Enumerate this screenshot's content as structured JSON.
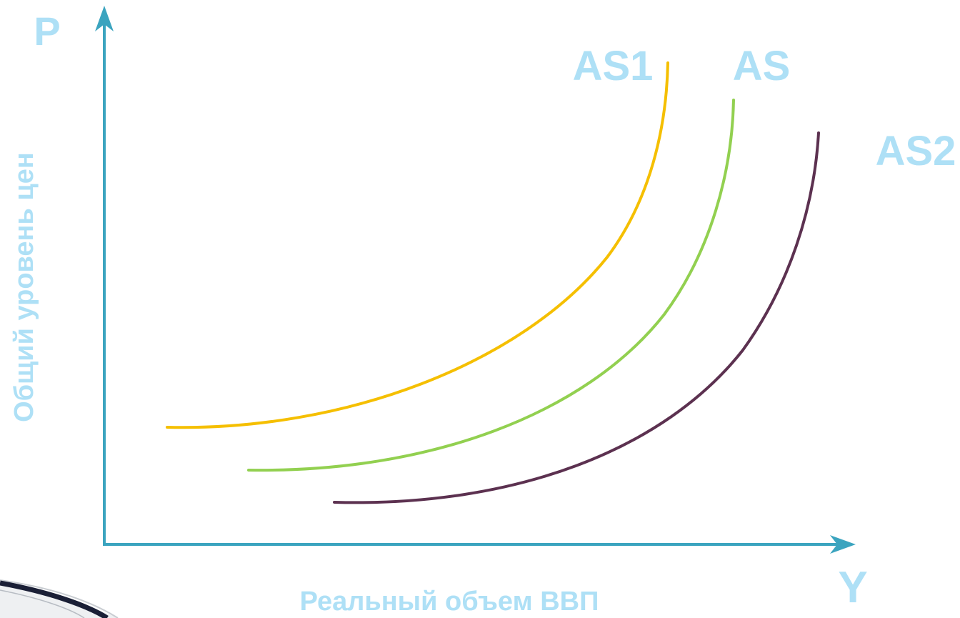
{
  "labels": {
    "y_axis_letter": "P",
    "x_axis_letter": "Y",
    "y_axis_title": "Общий уровень цен",
    "x_axis_title": "Реальный объем ВВП"
  },
  "curves": [
    {
      "name": "AS1",
      "color": "#f5bf00"
    },
    {
      "name": "AS",
      "color": "#92d050"
    },
    {
      "name": "AS2",
      "color": "#5c3150"
    }
  ],
  "colors": {
    "axis": "#3ba4bf",
    "label": "#aee0f6"
  }
}
